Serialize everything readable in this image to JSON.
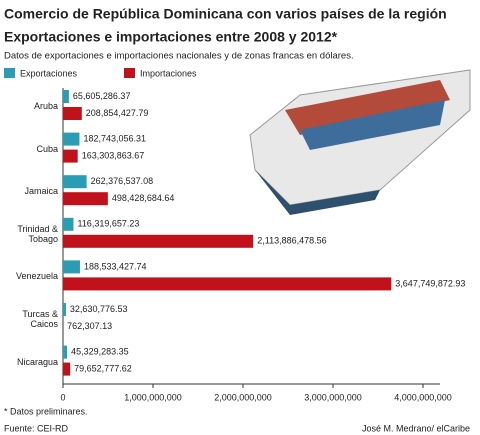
{
  "chart_data": {
    "type": "bar",
    "orientation": "horizontal",
    "title": "Comercio de República Dominicana con varios países de la región",
    "subtitle": "Exportaciones e importaciones entre 2008 y 2012*",
    "description": "Datos de exportaciones e importaciones nacionales y de zonas francas en dólares.",
    "categories": [
      "Aruba",
      "Cuba",
      "Jamaica",
      "Trinidad & Tobago",
      "Venezuela",
      "Turcas & Caicos",
      "Nicaragua"
    ],
    "series": [
      {
        "name": "Exportaciones",
        "color": "#2a9cb3",
        "values": [
          65605286.37,
          182743056.31,
          262376537.08,
          116319657.23,
          188533427.74,
          32630776.53,
          45329283.35
        ],
        "value_labels": [
          "65,605,286.37",
          "182,743,056.31",
          "262,376,537.08",
          "116,319,657.23",
          "188,533,427.74",
          "32,630,776.53",
          "45,329,283.35"
        ]
      },
      {
        "name": "Importaciones",
        "color": "#c1121c",
        "values": [
          208854427.79,
          163303863.67,
          498428684.64,
          2113886478.56,
          3647749872.93,
          762307.13,
          79652777.62
        ],
        "value_labels": [
          "208,854,427.79",
          "163,303,863.67",
          "498,428,684.64",
          "2,113,886,478.56",
          "3,647,749,872.93",
          "762,307.13",
          "79,652,777.62"
        ]
      }
    ],
    "xlim": [
      0,
      4000000000
    ],
    "xticks": [
      0,
      {
        "value": 1000000000,
        "label": "1,000,000,000"
      },
      {
        "value": 2000000000,
        "label": "2,000,000,000"
      },
      {
        "value": 3000000000,
        "label": "3,000,000,000"
      },
      {
        "value": 4000000000,
        "label": "4,000,000,000"
      }
    ],
    "footnote": "* Datos preliminares.",
    "source": "Fuente: CEI-RD",
    "credit": "José M. Medrano/ elCaribe"
  }
}
